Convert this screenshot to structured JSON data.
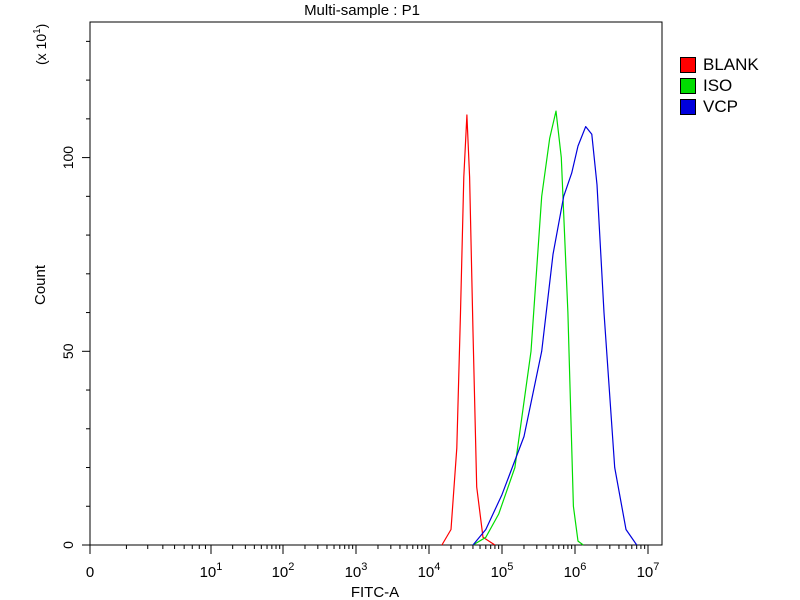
{
  "chart_data": {
    "type": "line",
    "title": "Multi-sample : P1",
    "xlabel": "FITC-A",
    "ylabel": "Count",
    "ymult_base": "(x 10",
    "ymult_exp": "1",
    "ymult_close": ")",
    "x_scale": "biexponential-log",
    "ylim": [
      0,
      13.5
    ],
    "yticks": [
      {
        "value": 0,
        "label": "0"
      },
      {
        "value": 5,
        "label": "50"
      },
      {
        "value": 10,
        "label": "100"
      }
    ],
    "xticks": [
      {
        "value": 0,
        "base": "0",
        "exp": ""
      },
      {
        "value": 10,
        "base": "10",
        "exp": "1"
      },
      {
        "value": 100,
        "base": "10",
        "exp": "2"
      },
      {
        "value": 1000,
        "base": "10",
        "exp": "3"
      },
      {
        "value": 10000,
        "base": "10",
        "exp": "4"
      },
      {
        "value": 100000,
        "base": "10",
        "exp": "5"
      },
      {
        "value": 1000000,
        "base": "10",
        "exp": "6"
      },
      {
        "value": 10000000,
        "base": "10",
        "exp": "7"
      }
    ],
    "legend_position": "right",
    "series": [
      {
        "name": "BLANK",
        "color": "#ff0000",
        "points": [
          [
            15000,
            0
          ],
          [
            20000,
            0.4
          ],
          [
            24000,
            2.5
          ],
          [
            27000,
            6
          ],
          [
            30000,
            9.5
          ],
          [
            33000,
            11.1
          ],
          [
            36000,
            9.5
          ],
          [
            40000,
            5.5
          ],
          [
            45000,
            1.5
          ],
          [
            55000,
            0.2
          ],
          [
            80000,
            0
          ]
        ]
      },
      {
        "name": "ISO",
        "color": "#00dd00",
        "points": [
          [
            40000,
            0
          ],
          [
            60000,
            0.2
          ],
          [
            90000,
            0.8
          ],
          [
            150000,
            2
          ],
          [
            250000,
            5
          ],
          [
            350000,
            9
          ],
          [
            450000,
            10.5
          ],
          [
            550000,
            11.2
          ],
          [
            650000,
            10
          ],
          [
            800000,
            6
          ],
          [
            950000,
            1
          ],
          [
            1100000,
            0.1
          ],
          [
            1300000,
            0
          ]
        ]
      },
      {
        "name": "VCP",
        "color": "#0000dd",
        "points": [
          [
            40000,
            0
          ],
          [
            60000,
            0.4
          ],
          [
            100000,
            1.3
          ],
          [
            200000,
            2.8
          ],
          [
            350000,
            5
          ],
          [
            500000,
            7.5
          ],
          [
            700000,
            9
          ],
          [
            900000,
            9.6
          ],
          [
            1100000,
            10.3
          ],
          [
            1400000,
            10.8
          ],
          [
            1700000,
            10.6
          ],
          [
            2000000,
            9.3
          ],
          [
            2500000,
            6
          ],
          [
            3500000,
            2
          ],
          [
            5000000,
            0.4
          ],
          [
            7000000,
            0
          ]
        ]
      }
    ]
  }
}
